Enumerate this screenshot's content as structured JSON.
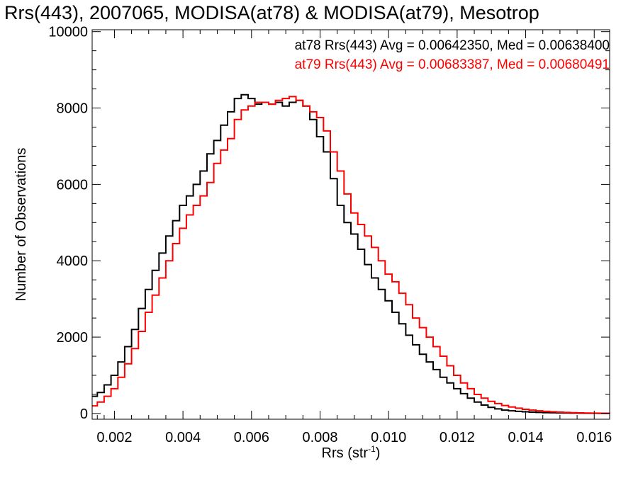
{
  "chart_data": {
    "type": "line",
    "title": "Rrs(443), 2007065, MODISA(at78) & MODISA(at79), Mesotrop",
    "xlabel": "Rrs (str",
    "xlabel_sup": "-1",
    "xlabel_close": ")",
    "ylabel": "Number of Observations",
    "xlim": [
      0.00135,
      0.01645
    ],
    "ylim": [
      -150,
      10050
    ],
    "x_ticks": [
      0.002,
      0.004,
      0.006,
      0.008,
      0.01,
      0.012,
      0.014,
      0.016
    ],
    "x_tick_labels": [
      "0.002",
      "0.004",
      "0.006",
      "0.008",
      "0.010",
      "0.012",
      "0.014",
      "0.016"
    ],
    "y_ticks": [
      0,
      2000,
      4000,
      6000,
      8000,
      10000
    ],
    "y_tick_labels": [
      "0",
      "2000",
      "4000",
      "6000",
      "8000",
      "10000"
    ],
    "grid": false,
    "legend": "top-right",
    "annotations": [
      {
        "text": "at78 Rrs(443) Avg = 0.00642350, Med = 0.00638400",
        "color": "#000000"
      },
      {
        "text": "at79 Rrs(443) Avg = 0.00683387, Med = 0.00680491",
        "color": "#ff0000"
      }
    ],
    "series": [
      {
        "color": "#000000",
        "x": [
          0.00135,
          0.0015,
          0.0017,
          0.0019,
          0.0021,
          0.0023,
          0.0025,
          0.0027,
          0.0029,
          0.0031,
          0.0033,
          0.0035,
          0.0037,
          0.0039,
          0.0041,
          0.0043,
          0.0045,
          0.0047,
          0.0049,
          0.0051,
          0.0053,
          0.0055,
          0.0057,
          0.0059,
          0.0061,
          0.0063,
          0.0065,
          0.0067,
          0.0069,
          0.0071,
          0.0073,
          0.0075,
          0.0077,
          0.0079,
          0.0081,
          0.0083,
          0.0085,
          0.0087,
          0.0089,
          0.0091,
          0.0093,
          0.0095,
          0.0097,
          0.0099,
          0.0101,
          0.0103,
          0.0105,
          0.0107,
          0.0109,
          0.0111,
          0.0113,
          0.0115,
          0.0117,
          0.0119,
          0.0121,
          0.0123,
          0.0125,
          0.0127,
          0.0129,
          0.0131,
          0.0133,
          0.0135,
          0.0137,
          0.0139,
          0.0141,
          0.0143,
          0.0145,
          0.0147,
          0.0149,
          0.0151,
          0.0153,
          0.0155,
          0.0157,
          0.0159,
          0.0161,
          0.0163,
          0.01645
        ],
        "y": [
          450,
          550,
          750,
          1000,
          1350,
          1750,
          2200,
          2750,
          3250,
          3750,
          4200,
          4650,
          5050,
          5450,
          5700,
          6000,
          6350,
          6800,
          7150,
          7550,
          7900,
          8250,
          8350,
          8250,
          8100,
          8150,
          8100,
          8150,
          8050,
          8150,
          8200,
          8050,
          7700,
          7250,
          6850,
          6150,
          5450,
          5000,
          4700,
          4300,
          3900,
          3550,
          3250,
          2950,
          2650,
          2350,
          2050,
          1800,
          1550,
          1350,
          1150,
          950,
          800,
          650,
          520,
          400,
          300,
          220,
          160,
          120,
          90,
          70,
          55,
          45,
          35,
          28,
          22,
          18,
          15,
          12,
          10,
          8,
          6,
          5,
          4,
          3,
          2
        ]
      },
      {
        "color": "#ff0000",
        "x": [
          0.00135,
          0.0015,
          0.0017,
          0.0019,
          0.0021,
          0.0023,
          0.0025,
          0.0027,
          0.0029,
          0.0031,
          0.0033,
          0.0035,
          0.0037,
          0.0039,
          0.0041,
          0.0043,
          0.0045,
          0.0047,
          0.0049,
          0.0051,
          0.0053,
          0.0055,
          0.0057,
          0.0059,
          0.0061,
          0.0063,
          0.0065,
          0.0067,
          0.0069,
          0.0071,
          0.0073,
          0.0075,
          0.0077,
          0.0079,
          0.0081,
          0.0083,
          0.0085,
          0.0087,
          0.0089,
          0.0091,
          0.0093,
          0.0095,
          0.0097,
          0.0099,
          0.0101,
          0.0103,
          0.0105,
          0.0107,
          0.0109,
          0.0111,
          0.0113,
          0.0115,
          0.0117,
          0.0119,
          0.0121,
          0.0123,
          0.0125,
          0.0127,
          0.0129,
          0.0131,
          0.0133,
          0.0135,
          0.0137,
          0.0139,
          0.0141,
          0.0143,
          0.0145,
          0.0147,
          0.0149,
          0.0151,
          0.0153,
          0.0155,
          0.0157,
          0.0159,
          0.0161,
          0.0163,
          0.01645
        ],
        "y": [
          200,
          300,
          450,
          650,
          950,
          1300,
          1700,
          2150,
          2650,
          3100,
          3550,
          4000,
          4450,
          4850,
          5200,
          5450,
          5700,
          6050,
          6550,
          6900,
          7200,
          7700,
          7950,
          8050,
          8150,
          8150,
          8100,
          8200,
          8250,
          8300,
          8200,
          8050,
          7900,
          7750,
          7400,
          6850,
          6350,
          5750,
          5250,
          4950,
          4650,
          4350,
          4000,
          3650,
          3450,
          3150,
          2850,
          2500,
          2250,
          2000,
          1750,
          1500,
          1250,
          1000,
          800,
          650,
          500,
          400,
          320,
          260,
          210,
          170,
          140,
          110,
          90,
          70,
          55,
          45,
          35,
          28,
          22,
          17,
          13,
          10,
          8,
          6,
          4
        ]
      }
    ]
  }
}
